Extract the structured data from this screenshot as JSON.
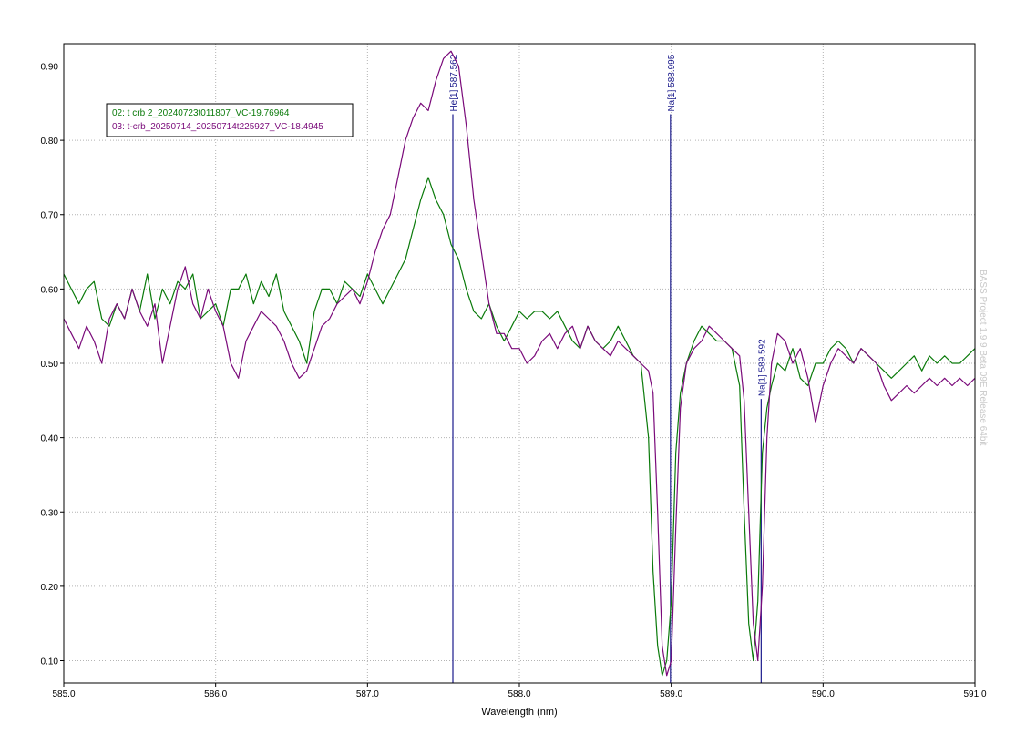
{
  "chart_data": {
    "type": "line",
    "xlabel": "Wavelength (nm)",
    "ylabel": "",
    "xlim": [
      585.0,
      591.0
    ],
    "ylim": [
      0.07,
      0.93
    ],
    "x_ticks": [
      "585.0",
      "586.0",
      "587.0",
      "588.0",
      "589.0",
      "590.0",
      "591.0"
    ],
    "y_ticks": [
      "0.10",
      "0.20",
      "0.30",
      "0.40",
      "0.50",
      "0.60",
      "0.70",
      "0.80",
      "0.90"
    ],
    "grid": true,
    "legend_position": "top-left",
    "watermark": "BASS Project 1.9.9 Beta 09E Release 64bit",
    "series": [
      {
        "name": "02: t crb 2_20240723t011807_VC-19.76964",
        "color": "#0a7a0a",
        "x": [
          585.0,
          585.05,
          585.1,
          585.15,
          585.2,
          585.25,
          585.3,
          585.35,
          585.4,
          585.45,
          585.5,
          585.55,
          585.6,
          585.65,
          585.7,
          585.75,
          585.8,
          585.85,
          585.9,
          585.95,
          586.0,
          586.05,
          586.1,
          586.15,
          586.2,
          586.25,
          586.3,
          586.35,
          586.4,
          586.45,
          586.5,
          586.55,
          586.6,
          586.65,
          586.7,
          586.75,
          586.8,
          586.85,
          586.9,
          586.95,
          587.0,
          587.05,
          587.1,
          587.15,
          587.2,
          587.25,
          587.3,
          587.35,
          587.4,
          587.45,
          587.5,
          587.55,
          587.6,
          587.65,
          587.7,
          587.75,
          587.8,
          587.85,
          587.9,
          587.95,
          588.0,
          588.05,
          588.1,
          588.15,
          588.2,
          588.25,
          588.3,
          588.35,
          588.4,
          588.45,
          588.5,
          588.55,
          588.6,
          588.65,
          588.7,
          588.75,
          588.8,
          588.85,
          588.88,
          588.91,
          588.94,
          588.97,
          589.0,
          589.03,
          589.06,
          589.1,
          589.15,
          589.2,
          589.25,
          589.3,
          589.35,
          589.4,
          589.45,
          589.48,
          589.51,
          589.54,
          589.57,
          589.6,
          589.63,
          589.66,
          589.7,
          589.75,
          589.8,
          589.85,
          589.9,
          589.95,
          590.0,
          590.05,
          590.1,
          590.15,
          590.2,
          590.25,
          590.3,
          590.35,
          590.4,
          590.45,
          590.5,
          590.55,
          590.6,
          590.65,
          590.7,
          590.75,
          590.8,
          590.85,
          590.9,
          590.95,
          591.0
        ],
        "y": [
          0.62,
          0.6,
          0.58,
          0.6,
          0.61,
          0.56,
          0.55,
          0.58,
          0.56,
          0.6,
          0.57,
          0.62,
          0.56,
          0.6,
          0.58,
          0.61,
          0.6,
          0.62,
          0.56,
          0.57,
          0.58,
          0.55,
          0.6,
          0.6,
          0.62,
          0.58,
          0.61,
          0.59,
          0.62,
          0.57,
          0.55,
          0.53,
          0.5,
          0.57,
          0.6,
          0.6,
          0.58,
          0.61,
          0.6,
          0.59,
          0.62,
          0.6,
          0.58,
          0.6,
          0.62,
          0.64,
          0.68,
          0.72,
          0.75,
          0.72,
          0.7,
          0.66,
          0.64,
          0.6,
          0.57,
          0.56,
          0.58,
          0.55,
          0.53,
          0.55,
          0.57,
          0.56,
          0.57,
          0.57,
          0.56,
          0.57,
          0.55,
          0.53,
          0.52,
          0.55,
          0.53,
          0.52,
          0.53,
          0.55,
          0.53,
          0.51,
          0.5,
          0.4,
          0.22,
          0.12,
          0.08,
          0.1,
          0.18,
          0.38,
          0.46,
          0.5,
          0.53,
          0.55,
          0.54,
          0.53,
          0.53,
          0.52,
          0.47,
          0.3,
          0.15,
          0.1,
          0.18,
          0.38,
          0.44,
          0.47,
          0.5,
          0.49,
          0.52,
          0.48,
          0.47,
          0.5,
          0.5,
          0.52,
          0.53,
          0.52,
          0.5,
          0.52,
          0.51,
          0.5,
          0.49,
          0.48,
          0.49,
          0.5,
          0.51,
          0.49,
          0.51,
          0.5,
          0.51,
          0.5,
          0.5,
          0.51,
          0.52
        ]
      },
      {
        "name": "03: t-crb_20250714_20250714t225927_VC-18.4945",
        "color": "#7a0a7a",
        "x": [
          585.0,
          585.05,
          585.1,
          585.15,
          585.2,
          585.25,
          585.3,
          585.35,
          585.4,
          585.45,
          585.5,
          585.55,
          585.6,
          585.65,
          585.7,
          585.75,
          585.8,
          585.85,
          585.9,
          585.95,
          586.0,
          586.05,
          586.1,
          586.15,
          586.2,
          586.25,
          586.3,
          586.35,
          586.4,
          586.45,
          586.5,
          586.55,
          586.6,
          586.65,
          586.7,
          586.75,
          586.8,
          586.85,
          586.9,
          586.95,
          587.0,
          587.05,
          587.1,
          587.15,
          587.2,
          587.25,
          587.3,
          587.35,
          587.4,
          587.45,
          587.5,
          587.55,
          587.6,
          587.65,
          587.7,
          587.75,
          587.8,
          587.85,
          587.9,
          587.95,
          588.0,
          588.05,
          588.1,
          588.15,
          588.2,
          588.25,
          588.3,
          588.35,
          588.4,
          588.45,
          588.5,
          588.55,
          588.6,
          588.65,
          588.7,
          588.75,
          588.8,
          588.85,
          588.88,
          588.91,
          588.94,
          588.97,
          589.0,
          589.03,
          589.06,
          589.1,
          589.15,
          589.2,
          589.25,
          589.3,
          589.35,
          589.4,
          589.45,
          589.48,
          589.51,
          589.54,
          589.57,
          589.6,
          589.63,
          589.66,
          589.7,
          589.75,
          589.8,
          589.85,
          589.9,
          589.95,
          590.0,
          590.05,
          590.1,
          590.15,
          590.2,
          590.25,
          590.3,
          590.35,
          590.4,
          590.45,
          590.5,
          590.55,
          590.6,
          590.65,
          590.7,
          590.75,
          590.8,
          590.85,
          590.9,
          590.95,
          591.0
        ],
        "y": [
          0.56,
          0.54,
          0.52,
          0.55,
          0.53,
          0.5,
          0.56,
          0.58,
          0.56,
          0.6,
          0.57,
          0.55,
          0.58,
          0.5,
          0.55,
          0.6,
          0.63,
          0.58,
          0.56,
          0.6,
          0.57,
          0.55,
          0.5,
          0.48,
          0.53,
          0.55,
          0.57,
          0.56,
          0.55,
          0.53,
          0.5,
          0.48,
          0.49,
          0.52,
          0.55,
          0.56,
          0.58,
          0.59,
          0.6,
          0.58,
          0.61,
          0.65,
          0.68,
          0.7,
          0.75,
          0.8,
          0.83,
          0.85,
          0.84,
          0.88,
          0.91,
          0.92,
          0.9,
          0.82,
          0.72,
          0.65,
          0.58,
          0.54,
          0.54,
          0.52,
          0.52,
          0.5,
          0.51,
          0.53,
          0.54,
          0.52,
          0.54,
          0.55,
          0.52,
          0.55,
          0.53,
          0.52,
          0.51,
          0.53,
          0.52,
          0.51,
          0.5,
          0.49,
          0.46,
          0.3,
          0.12,
          0.08,
          0.1,
          0.28,
          0.44,
          0.5,
          0.52,
          0.53,
          0.55,
          0.54,
          0.53,
          0.52,
          0.51,
          0.45,
          0.3,
          0.15,
          0.1,
          0.2,
          0.4,
          0.5,
          0.54,
          0.53,
          0.5,
          0.52,
          0.48,
          0.42,
          0.47,
          0.5,
          0.52,
          0.51,
          0.5,
          0.52,
          0.51,
          0.5,
          0.47,
          0.45,
          0.46,
          0.47,
          0.46,
          0.47,
          0.48,
          0.47,
          0.48,
          0.47,
          0.48,
          0.47,
          0.48
        ]
      }
    ],
    "markers": [
      {
        "label": "He[1] 587.562",
        "x": 587.562,
        "y_top": 0.835
      },
      {
        "label": "Na[1] 588.995",
        "x": 588.995,
        "y_top": 0.835
      },
      {
        "label": "Na[1] 589.592",
        "x": 589.592,
        "y_top": 0.452
      }
    ],
    "marker_color": "#1a1a8c"
  }
}
